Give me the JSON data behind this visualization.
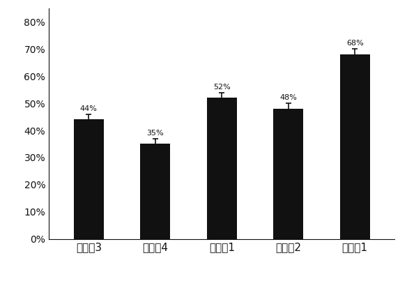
{
  "categories": [
    "对比化3",
    "对比化4",
    "对比化1",
    "对比化2",
    "实施化1"
  ],
  "values": [
    44,
    35,
    52,
    48,
    68
  ],
  "errors": [
    2,
    2,
    2,
    2,
    2
  ],
  "bar_color": "#111111",
  "label_color": "#111111",
  "bg_color": "#ffffff",
  "yticks": [
    0,
    10,
    20,
    30,
    40,
    50,
    60,
    70,
    80
  ],
  "ytick_labels": [
    "0%",
    "10%",
    "20%",
    "30%",
    "40%",
    "50%",
    "60%",
    "70%",
    "80%"
  ],
  "ylim": [
    0,
    85
  ],
  "bar_width": 0.45,
  "label_fontsize": 8,
  "tick_fontsize": 10,
  "xtick_fontsize": 11
}
